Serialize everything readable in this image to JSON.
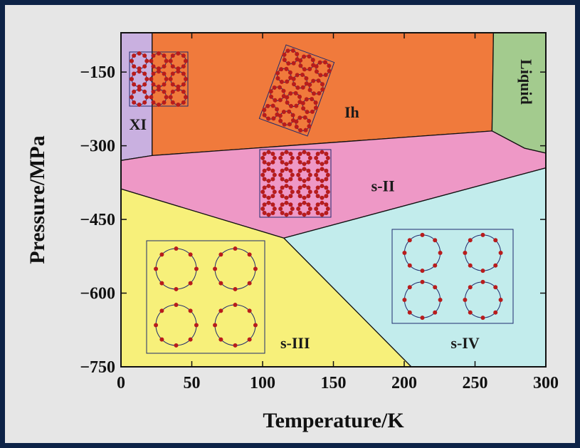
{
  "chart_data": {
    "type": "phase-diagram",
    "title": "",
    "xlabel": "Temperature/K",
    "ylabel": "Pressure/MPa",
    "xlim": [
      0,
      300
    ],
    "ylim": [
      -750,
      -70
    ],
    "xticks": [
      "0",
      "50",
      "100",
      "150",
      "200",
      "250",
      "300"
    ],
    "yticks": [
      "-150",
      "-300",
      "-450",
      "-600",
      "-750"
    ],
    "xtick_values": [
      0,
      50,
      100,
      150,
      200,
      250,
      300
    ],
    "ytick_values": [
      -150,
      -300,
      -450,
      -600,
      -750
    ],
    "regions": [
      {
        "name": "XI",
        "color": "#c9b0e0",
        "label_at": [
          12,
          -260
        ],
        "polygon": [
          [
            0,
            -70
          ],
          [
            22,
            -70
          ],
          [
            22,
            -320
          ],
          [
            0,
            -330
          ]
        ]
      },
      {
        "name": "Ih",
        "color": "#f07a3c",
        "label_at": [
          163,
          -235
        ],
        "polygon": [
          [
            22,
            -70
          ],
          [
            263,
            -70
          ],
          [
            262,
            -270
          ],
          [
            22,
            -320
          ]
        ]
      },
      {
        "name": "Liquid",
        "color": "#a3cb8e",
        "label_at": [
          285,
          -170
        ],
        "polygon": [
          [
            263,
            -70
          ],
          [
            300,
            -70
          ],
          [
            300,
            -315
          ],
          [
            285,
            -305
          ],
          [
            262,
            -270
          ]
        ]
      },
      {
        "name": "s-II",
        "color": "#ee98c6",
        "label_at": [
          185,
          -385
        ],
        "polygon": [
          [
            0,
            -330
          ],
          [
            22,
            -320
          ],
          [
            262,
            -270
          ],
          [
            285,
            -305
          ],
          [
            300,
            -315
          ],
          [
            300,
            -345
          ],
          [
            115,
            -488
          ],
          [
            0,
            -388
          ]
        ]
      },
      {
        "name": "s-III",
        "color": "#f7f07a",
        "label_at": [
          123,
          -705
        ],
        "polygon": [
          [
            0,
            -388
          ],
          [
            115,
            -488
          ],
          [
            205,
            -750
          ],
          [
            0,
            -750
          ]
        ]
      },
      {
        "name": "s-IV",
        "color": "#c2ecec",
        "label_at": [
          243,
          -705
        ],
        "polygon": [
          [
            115,
            -488
          ],
          [
            300,
            -345
          ],
          [
            300,
            -750
          ],
          [
            205,
            -750
          ]
        ]
      }
    ],
    "grid": false
  },
  "colors": {
    "frame": "#0d2347",
    "panel": "#e6e6e6",
    "atom": "#b81c1c",
    "bond": "#1e2a6e"
  }
}
